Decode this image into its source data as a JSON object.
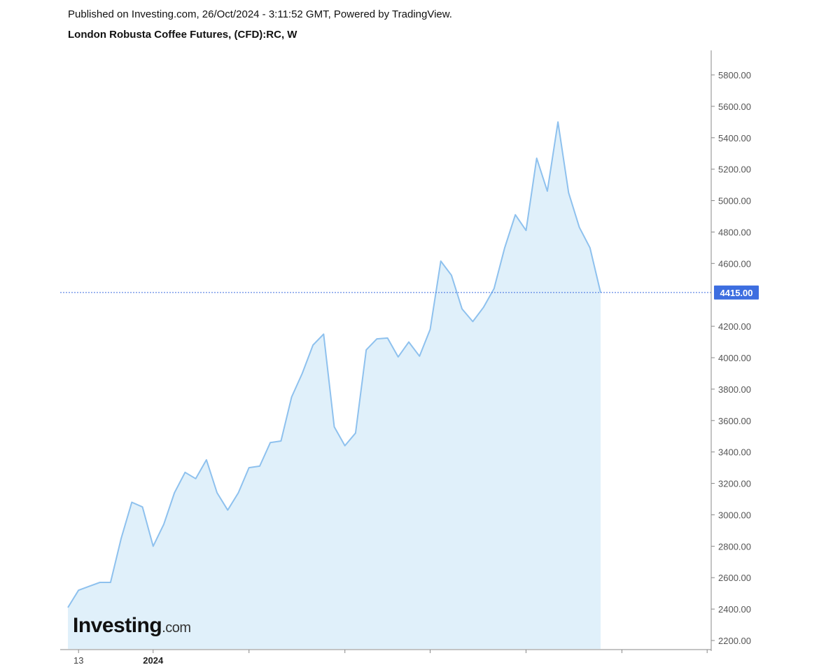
{
  "header": {
    "published": "Published on Investing.com, 26/Oct/2024 - 3:11:52 GMT, Powered by TradingView.",
    "title": "London Robusta Coffee Futures, (CFD):RC, W"
  },
  "logo": {
    "main": "Investing",
    "suffix": ".com"
  },
  "colors": {
    "line": "#8ec1ee",
    "fill": "#e0f0fa",
    "current_price": "#3d6ee0",
    "axis": "#888888"
  },
  "chart_data": {
    "type": "area",
    "title": "London Robusta Coffee Futures, (CFD):RC, W",
    "xlabel": "",
    "ylabel": "",
    "ylim": [
      2100,
      5960
    ],
    "grid": false,
    "y_ticks": [
      5800,
      5600,
      5400,
      5200,
      5000,
      4800,
      4600,
      4200,
      4000,
      3800,
      3600,
      3400,
      3200,
      3000,
      2800,
      2600,
      2400,
      2200
    ],
    "y_tick_labels": [
      "5800.00",
      "5600.00",
      "5400.00",
      "5200.00",
      "5000.00",
      "4800.00",
      "4600.00",
      "4200.00",
      "4000.00",
      "3800.00",
      "3600.00",
      "3400.00",
      "3200.00",
      "3000.00",
      "2800.00",
      "2600.00",
      "2400.00",
      "2200.00"
    ],
    "x_ticks": [
      {
        "label": "13",
        "bold": false,
        "index": 1
      },
      {
        "label": "2024",
        "bold": true,
        "index": 8
      },
      {
        "label": "",
        "bold": false,
        "index": 17
      },
      {
        "label": "",
        "bold": false,
        "index": 26
      },
      {
        "label": "",
        "bold": false,
        "index": 34
      },
      {
        "label": "",
        "bold": false,
        "index": 43
      },
      {
        "label": "",
        "bold": false,
        "index": 52
      },
      {
        "label": "",
        "bold": false,
        "index": 60
      }
    ],
    "current_value": 4415,
    "current_label": "4415.00",
    "series": [
      {
        "values": [
          2410,
          2520,
          2545,
          2570,
          2570,
          2850,
          3080,
          3050,
          2800,
          2940,
          3140,
          3270,
          3230,
          3350,
          3140,
          3030,
          3140,
          3300,
          3310,
          3460,
          3470,
          3750,
          3900,
          4080,
          4150,
          3560,
          3440,
          3520,
          4050,
          4120,
          4125,
          4005,
          4100,
          4010,
          4180,
          4615,
          4525,
          4310,
          4230,
          4320,
          4440,
          4700,
          4910,
          4810,
          5270,
          5060,
          5500,
          5050,
          4830,
          4700,
          4415
        ]
      }
    ]
  }
}
